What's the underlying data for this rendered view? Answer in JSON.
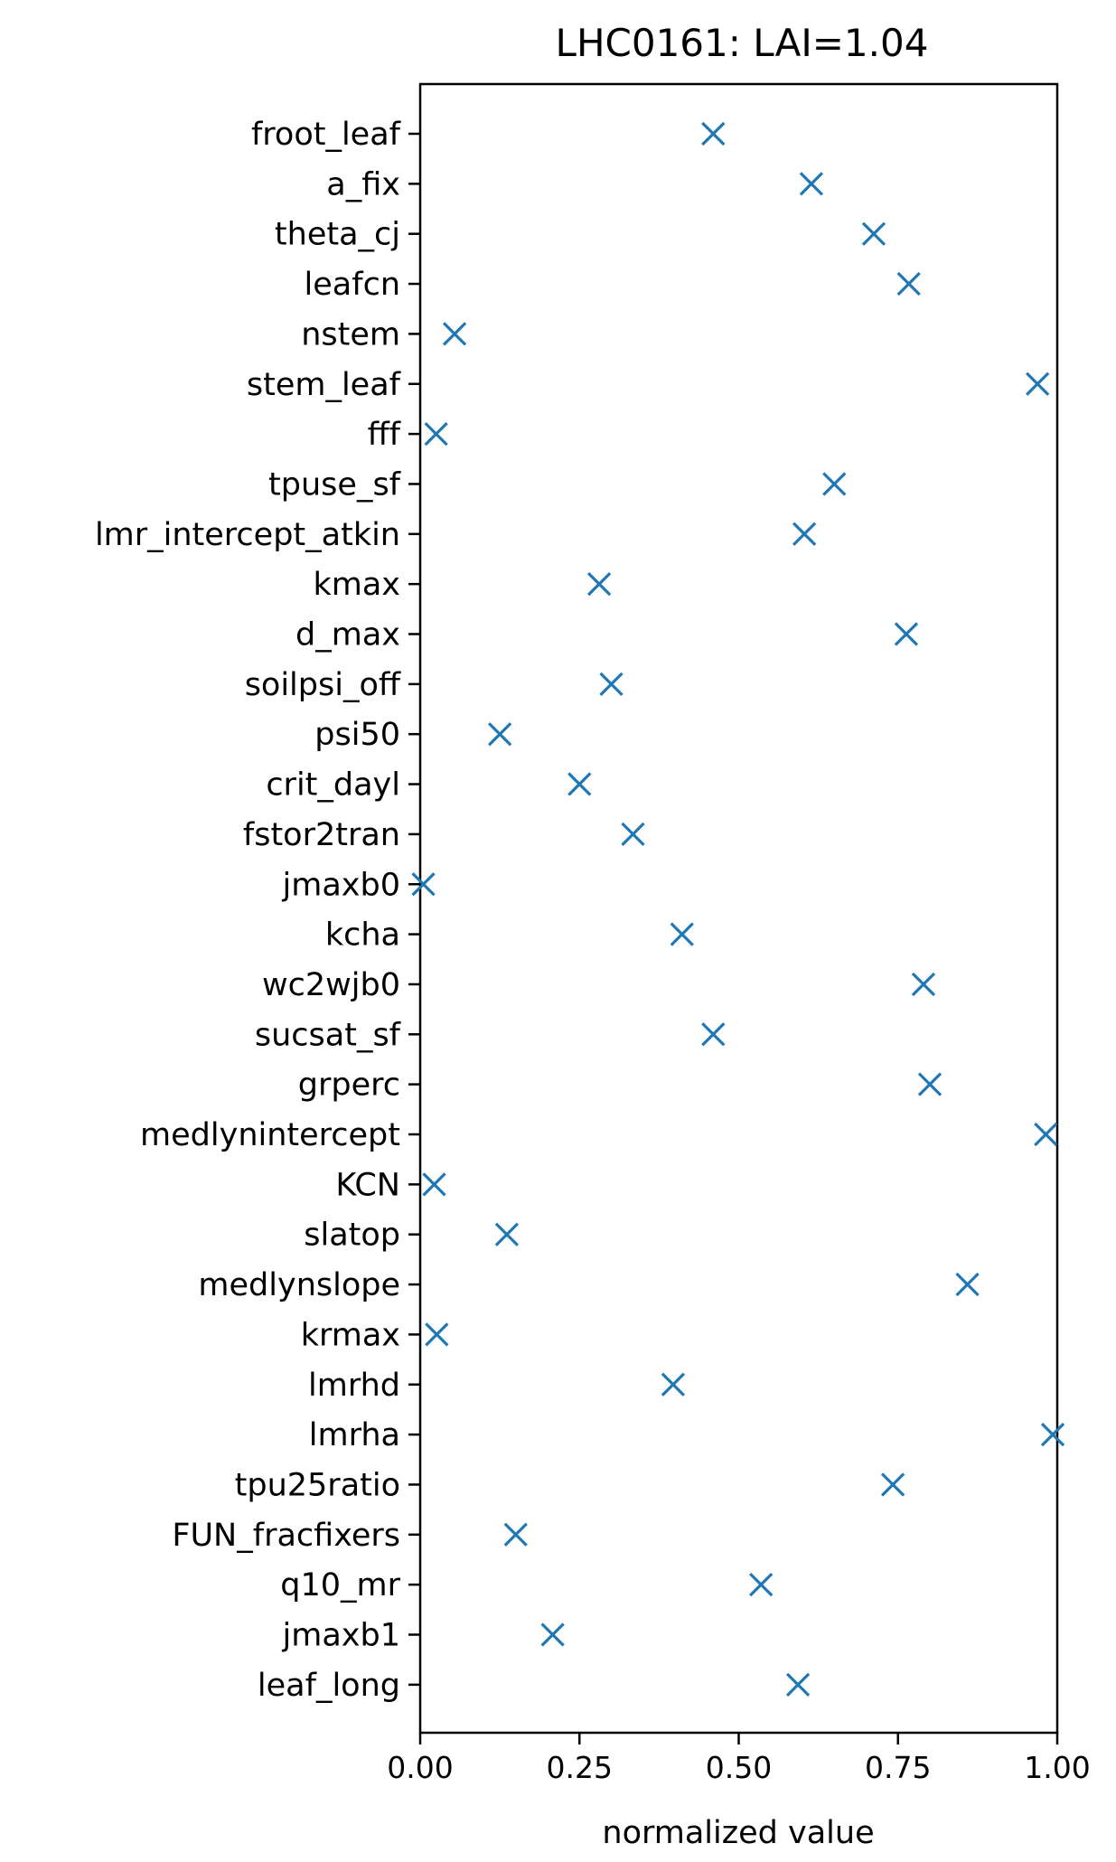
{
  "chart_data": {
    "type": "scatter",
    "title": "LHC0161:   LAI=1.04",
    "xlabel": "normalized value",
    "ylabel": "",
    "xlim": [
      0,
      1
    ],
    "xticks": [
      "0.00",
      "0.25",
      "0.50",
      "0.75",
      "1.00"
    ],
    "xtick_values": [
      0,
      0.25,
      0.5,
      0.75,
      1
    ],
    "marker": "x",
    "color": "#1f77b4",
    "grid": false,
    "categories": [
      "froot_leaf",
      "a_fix",
      "theta_cj",
      "leafcn",
      "nstem",
      "stem_leaf",
      "fff",
      "tpuse_sf",
      "lmr_intercept_atkin",
      "kmax",
      "d_max",
      "soilpsi_off",
      "psi50",
      "crit_dayl",
      "fstor2tran",
      "jmaxb0",
      "kcha",
      "wc2wjb0",
      "sucsat_sf",
      "grperc",
      "medlynintercept",
      "KCN",
      "slatop",
      "medlynslope",
      "krmax",
      "lmrhd",
      "lmrha",
      "tpu25ratio",
      "FUN_fracfixers",
      "q10_mr",
      "jmaxb1",
      "leaf_long"
    ],
    "values": [
      0.46,
      0.614,
      0.712,
      0.767,
      0.054,
      0.969,
      0.025,
      0.65,
      0.603,
      0.281,
      0.763,
      0.3,
      0.125,
      0.25,
      0.334,
      0.005,
      0.411,
      0.79,
      0.46,
      0.8,
      0.982,
      0.022,
      0.136,
      0.859,
      0.026,
      0.397,
      0.993,
      0.742,
      0.15,
      0.535,
      0.208,
      0.593
    ]
  }
}
